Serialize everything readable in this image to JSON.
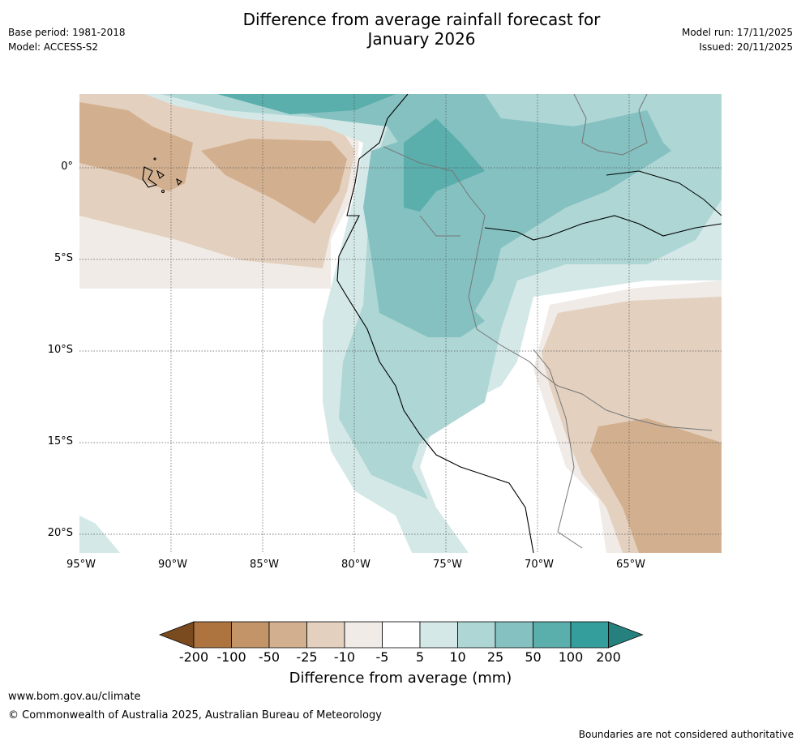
{
  "header": {
    "title_line1": "Difference from average rainfall forecast for",
    "title_line2": "January 2026",
    "base_period": "Base period: 1981-2018",
    "model": "Model: ACCESS-S2",
    "model_run": "Model run: 17/11/2025",
    "issued": "Issued: 20/11/2025"
  },
  "map": {
    "lat_labels": [
      "0°",
      "5°S",
      "10°S",
      "15°S",
      "20°S"
    ],
    "lon_labels": [
      "95°W",
      "90°W",
      "85°W",
      "80°W",
      "75°W",
      "70°W",
      "65°W"
    ],
    "extent": {
      "lon_min": -95,
      "lon_max": -60,
      "lat_min": -21,
      "lat_max": 4
    }
  },
  "colorbar": {
    "title": "Difference from average (mm)",
    "tick_labels": [
      "-200",
      "-100",
      "-50",
      "-25",
      "-10",
      "-5",
      "5",
      "10",
      "25",
      "50",
      "100",
      "200"
    ],
    "colors": [
      "#7a4b1f",
      "#ad743f",
      "#c29467",
      "#d2b08f",
      "#e3d0be",
      "#f0ebe6",
      "#ffffff",
      "#d4e8e7",
      "#add6d5",
      "#84c1c0",
      "#5aaeac",
      "#349e9c",
      "#26807e"
    ]
  },
  "footer": {
    "website": "www.bom.gov.au/climate",
    "copyright": "© Commonwealth of Australia 2025, Australian Bureau of Meteorology",
    "disclaimer": "Boundaries are not considered authoritative"
  }
}
